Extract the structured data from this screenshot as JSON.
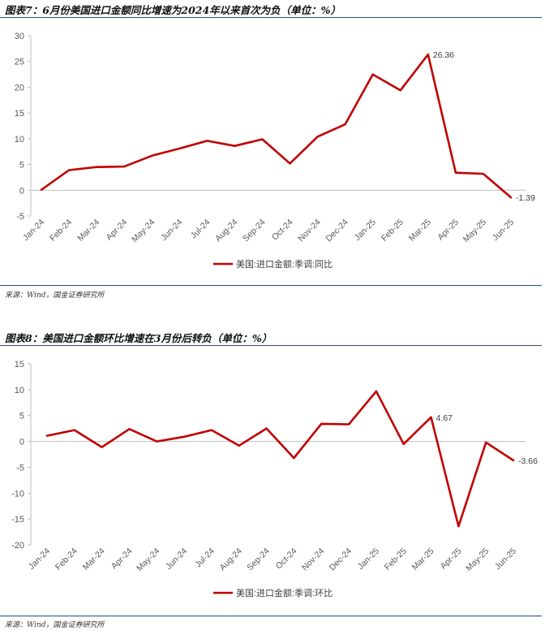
{
  "colors": {
    "line": "#c00000",
    "axis": "#bfbfbf",
    "rule": "#1f4e79",
    "tick_text": "#595959"
  },
  "chart_data": [
    {
      "type": "line",
      "title": "图表7：6月份美国进口金额同比增速为2024年以来首次为负（单位：%）",
      "categories": [
        "Jan-24",
        "Feb-24",
        "Mar-24",
        "Apr-24",
        "May-24",
        "Jun-24",
        "Jul-24",
        "Aug-24",
        "Sep-24",
        "Oct-24",
        "Nov-24",
        "Dec-24",
        "Jan-25",
        "Feb-25",
        "Mar-25",
        "Apr-25",
        "May-25",
        "Jun-25"
      ],
      "series": [
        {
          "name": "美国:进口金额:季调:同比",
          "values": [
            0.1,
            3.9,
            4.5,
            4.6,
            6.7,
            8.1,
            9.6,
            8.6,
            9.9,
            5.2,
            10.4,
            12.8,
            22.5,
            19.4,
            26.36,
            3.4,
            3.2,
            -1.39
          ]
        }
      ],
      "data_labels": [
        {
          "index": 14,
          "text": "26.36"
        },
        {
          "index": 17,
          "text": "-1.39"
        }
      ],
      "yticks": [
        "30",
        "25",
        "20",
        "15",
        "10",
        "5",
        "0",
        "-5"
      ],
      "ylim": [
        -5,
        30
      ],
      "legend": "bottom-center",
      "grid": false,
      "source": "来源：Wind，国金证券研究所"
    },
    {
      "type": "line",
      "title": "图表8：美国进口金额环比增速在3月份后转负（单位：%）",
      "categories": [
        "Jan-24",
        "Feb-24",
        "Mar-24",
        "Apr-24",
        "May-24",
        "Jun-24",
        "Jul-24",
        "Aug-24",
        "Sep-24",
        "Oct-24",
        "Nov-24",
        "Dec-24",
        "Jan-25",
        "Feb-25",
        "Mar-25",
        "Apr-25",
        "May-25",
        "Jun-25"
      ],
      "series": [
        {
          "name": "美国:进口金额:季调:环比",
          "values": [
            1.1,
            2.2,
            -1.1,
            2.4,
            0.0,
            0.9,
            2.2,
            -0.8,
            2.5,
            -3.2,
            3.4,
            3.3,
            9.7,
            -0.5,
            4.67,
            -16.4,
            -0.2,
            -3.66
          ]
        }
      ],
      "data_labels": [
        {
          "index": 14,
          "text": "4.67"
        },
        {
          "index": 17,
          "text": "-3.66"
        }
      ],
      "yticks": [
        "15",
        "10",
        "5",
        "0",
        "-5",
        "-10",
        "-15",
        "-20"
      ],
      "ylim": [
        -20,
        15
      ],
      "legend": "bottom-center",
      "grid": false,
      "source": "来源：Wind，国金证券研究所"
    }
  ]
}
